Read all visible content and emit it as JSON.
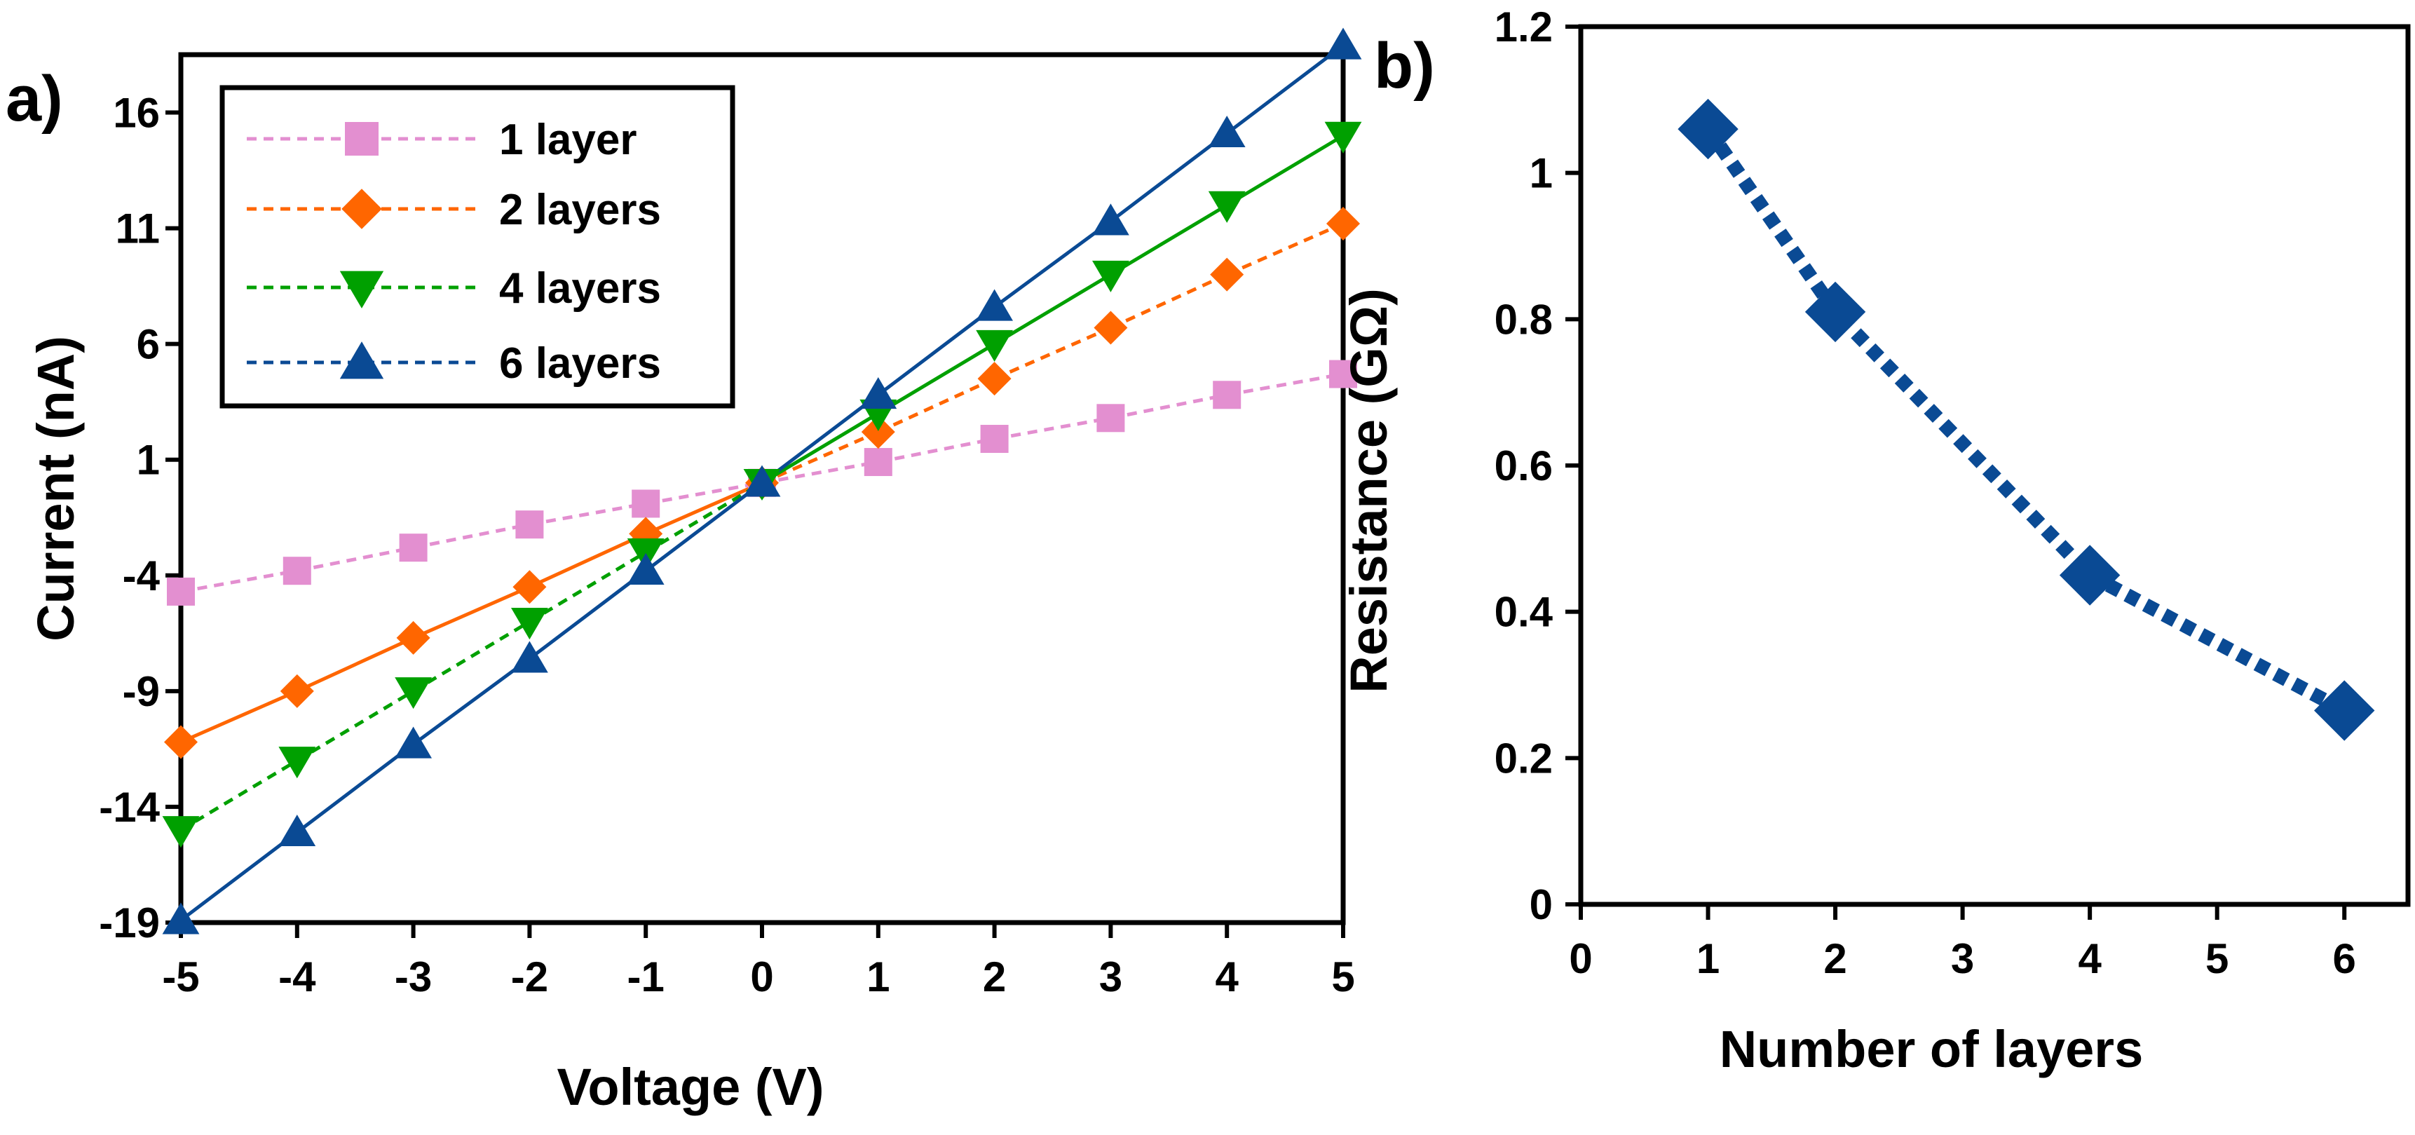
{
  "figure": {
    "panel_a_label": "a)",
    "panel_b_label": "b)"
  },
  "chart_data": [
    {
      "type": "line",
      "title": "",
      "xlabel": "Voltage (V)",
      "ylabel": "Current (nA)",
      "x": [
        -5,
        -4,
        -3,
        -2,
        -1,
        0,
        1,
        2,
        3,
        4,
        5
      ],
      "xlim": [
        -5,
        5
      ],
      "ylim": [
        -19,
        18.5
      ],
      "xticks": [
        "-5",
        "-4",
        "-3",
        "-2",
        "-1",
        "0",
        "1",
        "2",
        "3",
        "4",
        "5"
      ],
      "yticks": [
        "-19",
        "-14",
        "-9",
        "-4",
        "1",
        "6",
        "11",
        "16"
      ],
      "ytick_values": [
        -19,
        -14,
        -9,
        -4,
        1,
        6,
        11,
        16
      ],
      "legend_position": "top-left",
      "series": [
        {
          "name": "1 layer",
          "color": "#E38FD0",
          "marker": "square",
          "line_style": "dashed",
          "values": [
            -4.7,
            -3.8,
            -2.8,
            -1.8,
            -0.9,
            0.0,
            0.9,
            1.9,
            2.8,
            3.8,
            4.7
          ]
        },
        {
          "name": "2 layers",
          "color": "#FF6600",
          "marker": "diamond",
          "line_style": "solid-negative-dashed-positive",
          "values": [
            -11.2,
            -9.0,
            -6.7,
            -4.5,
            -2.2,
            0.0,
            2.2,
            4.5,
            6.7,
            9.0,
            11.2
          ]
        },
        {
          "name": "4 layers",
          "color": "#00A000",
          "marker": "triangle-down",
          "line_style": "dashed-negative-solid-positive",
          "values": [
            -15.0,
            -12.0,
            -9.0,
            -6.0,
            -3.0,
            0.0,
            3.0,
            6.0,
            9.0,
            12.0,
            15.0
          ]
        },
        {
          "name": "6 layers",
          "color": "#0A4A94",
          "marker": "triangle-up",
          "line_style": "solid",
          "values": [
            -18.9,
            -15.1,
            -11.3,
            -7.6,
            -3.8,
            0.0,
            3.8,
            7.6,
            11.3,
            15.1,
            18.9
          ]
        }
      ]
    },
    {
      "type": "scatter",
      "title": "",
      "xlabel": "Number of layers",
      "ylabel": "Resistance (GΩ)",
      "x": [
        1,
        2,
        4,
        6
      ],
      "values": [
        1.06,
        0.81,
        0.45,
        0.265
      ],
      "xlim": [
        0,
        6.5
      ],
      "ylim": [
        0,
        1.2
      ],
      "xticks": [
        "0",
        "1",
        "2",
        "3",
        "4",
        "5",
        "6"
      ],
      "yticks": [
        "0",
        "0.2",
        "0.4",
        "0.6",
        "0.8",
        "1",
        "1.2"
      ],
      "ytick_values": [
        0,
        0.2,
        0.4,
        0.6,
        0.8,
        1.0,
        1.2
      ],
      "marker": "diamond",
      "color": "#0A4A94",
      "line_style": "dotted-thick"
    }
  ]
}
